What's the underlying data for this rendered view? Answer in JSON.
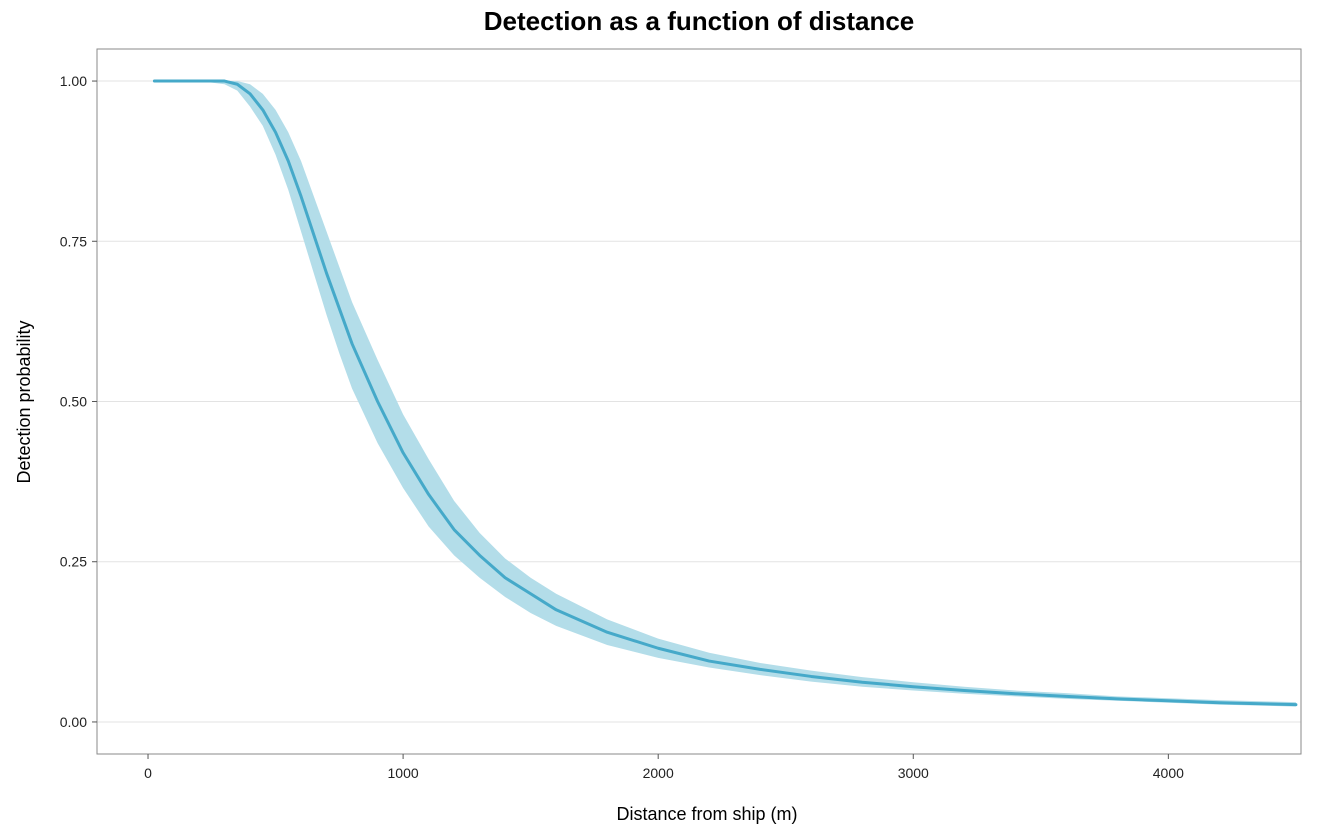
{
  "chart_data": {
    "type": "line",
    "title": "Detection as a function of distance",
    "xlabel": "Distance from ship (m)",
    "ylabel": "Detection probability",
    "xlim": [
      -200,
      4520
    ],
    "ylim": [
      -0.05,
      1.05
    ],
    "x_ticks": [
      0,
      1000,
      2000,
      3000,
      4000
    ],
    "x_tick_labels": [
      "0",
      "1000",
      "2000",
      "3000",
      "4000"
    ],
    "y_ticks": [
      0.0,
      0.25,
      0.5,
      0.75,
      1.0
    ],
    "y_tick_labels": [
      "0.00",
      "0.25",
      "0.50",
      "0.75",
      "1.00"
    ],
    "grid": "horizontal",
    "legend": "none",
    "colors": {
      "line": "#45a9c9",
      "band": "#b3dde9",
      "grid": "#e3e3e3",
      "frame": "#8a8a8a"
    },
    "series": [
      {
        "x": [
          25,
          100,
          200,
          300,
          350,
          400,
          450,
          500,
          550,
          600,
          650,
          700,
          750,
          800,
          900,
          1000,
          1100,
          1200,
          1300,
          1400,
          1500,
          1600,
          1800,
          2000,
          2200,
          2400,
          2600,
          2800,
          3000,
          3200,
          3400,
          3600,
          3800,
          4000,
          4200,
          4400,
          4500
        ],
        "y": [
          1.0,
          1.0,
          1.0,
          1.0,
          0.995,
          0.98,
          0.955,
          0.92,
          0.875,
          0.82,
          0.76,
          0.7,
          0.645,
          0.59,
          0.5,
          0.42,
          0.355,
          0.3,
          0.26,
          0.225,
          0.2,
          0.175,
          0.14,
          0.115,
          0.095,
          0.082,
          0.071,
          0.062,
          0.055,
          0.049,
          0.044,
          0.04,
          0.036,
          0.033,
          0.03,
          0.028,
          0.027
        ],
        "lower": [
          1.0,
          1.0,
          1.0,
          0.995,
          0.985,
          0.96,
          0.93,
          0.885,
          0.83,
          0.765,
          0.7,
          0.635,
          0.575,
          0.52,
          0.435,
          0.365,
          0.305,
          0.26,
          0.225,
          0.195,
          0.17,
          0.15,
          0.12,
          0.1,
          0.085,
          0.073,
          0.063,
          0.055,
          0.049,
          0.044,
          0.04,
          0.036,
          0.033,
          0.03,
          0.027,
          0.025,
          0.024
        ],
        "upper": [
          1.0,
          1.0,
          1.0,
          1.0,
          1.0,
          0.995,
          0.98,
          0.955,
          0.92,
          0.875,
          0.82,
          0.765,
          0.71,
          0.655,
          0.565,
          0.48,
          0.41,
          0.345,
          0.295,
          0.255,
          0.225,
          0.2,
          0.16,
          0.13,
          0.108,
          0.092,
          0.08,
          0.07,
          0.062,
          0.055,
          0.049,
          0.045,
          0.04,
          0.037,
          0.034,
          0.032,
          0.031
        ]
      }
    ]
  }
}
